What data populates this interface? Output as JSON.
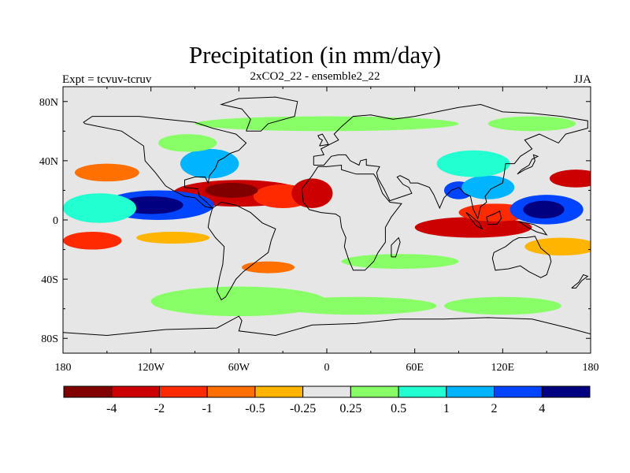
{
  "title": "Precipitation (in mm/day)",
  "subtitle": "2xCO2_22 - ensemble2_22",
  "left_label": "Expt = tcvuv-tcruv",
  "right_label": "JJA",
  "chart_data": {
    "type": "heatmap",
    "map_projection": "cylindrical-equidistant",
    "lon_range": [
      -180,
      180
    ],
    "lat_range": [
      -90,
      90
    ],
    "x_ticks": [
      "180",
      "120W",
      "60W",
      "0",
      "60E",
      "120E",
      "180"
    ],
    "y_ticks": [
      "80N",
      "40N",
      "0",
      "40S",
      "80S"
    ],
    "colorbar": {
      "colors": [
        "#800000",
        "#cc0000",
        "#ff2a00",
        "#ff7000",
        "#ffb400",
        "#e6e6e6",
        "#88ff66",
        "#22ffd0",
        "#00b4ff",
        "#0044ff",
        "#000080"
      ],
      "labels": [
        "-4",
        "-2",
        "-1",
        "-0.5",
        "-0.25",
        "0.25",
        "0.5",
        "1",
        "2",
        "4"
      ]
    },
    "background_color": "#e6e6e6",
    "anomaly_regions": [
      {
        "lon": -60,
        "lat": 18,
        "rx": 45,
        "ry": 9,
        "level": 1
      },
      {
        "lon": -30,
        "lat": 16,
        "rx": 20,
        "ry": 8,
        "level": 2
      },
      {
        "lon": -10,
        "lat": 18,
        "rx": 14,
        "ry": 10,
        "level": 1
      },
      {
        "lon": -65,
        "lat": 20,
        "rx": 18,
        "ry": 5,
        "level": 0
      },
      {
        "lon": -115,
        "lat": 10,
        "rx": 38,
        "ry": 10,
        "level": 9
      },
      {
        "lon": -120,
        "lat": 10,
        "rx": 22,
        "ry": 6,
        "level": 10
      },
      {
        "lon": -155,
        "lat": 8,
        "rx": 25,
        "ry": 10,
        "level": 7
      },
      {
        "lon": -150,
        "lat": 32,
        "rx": 22,
        "ry": 6,
        "level": 3
      },
      {
        "lon": -160,
        "lat": -14,
        "rx": 20,
        "ry": 6,
        "level": 2
      },
      {
        "lon": -105,
        "lat": -12,
        "rx": 25,
        "ry": 4,
        "level": 4
      },
      {
        "lon": -80,
        "lat": 38,
        "rx": 20,
        "ry": 10,
        "level": 8
      },
      {
        "lon": -95,
        "lat": 52,
        "rx": 20,
        "ry": 6,
        "level": 6
      },
      {
        "lon": 100,
        "lat": -5,
        "rx": 40,
        "ry": 7,
        "level": 1
      },
      {
        "lon": 115,
        "lat": 5,
        "rx": 25,
        "ry": 6,
        "level": 2
      },
      {
        "lon": 150,
        "lat": 7,
        "rx": 25,
        "ry": 10,
        "level": 9
      },
      {
        "lon": 148,
        "lat": 7,
        "rx": 14,
        "ry": 6,
        "level": 10
      },
      {
        "lon": 90,
        "lat": 20,
        "rx": 10,
        "ry": 6,
        "level": 9
      },
      {
        "lon": 110,
        "lat": 22,
        "rx": 18,
        "ry": 8,
        "level": 8
      },
      {
        "lon": 100,
        "lat": 38,
        "rx": 25,
        "ry": 9,
        "level": 7
      },
      {
        "lon": 170,
        "lat": 28,
        "rx": 18,
        "ry": 6,
        "level": 1
      },
      {
        "lon": 160,
        "lat": -18,
        "rx": 25,
        "ry": 6,
        "level": 4
      },
      {
        "lon": 50,
        "lat": -28,
        "rx": 40,
        "ry": 5,
        "level": 6
      },
      {
        "lon": -60,
        "lat": -55,
        "rx": 60,
        "ry": 10,
        "level": 6
      },
      {
        "lon": 20,
        "lat": -58,
        "rx": 55,
        "ry": 6,
        "level": 6
      },
      {
        "lon": 120,
        "lat": -58,
        "rx": 40,
        "ry": 6,
        "level": 6
      },
      {
        "lon": 0,
        "lat": 65,
        "rx": 90,
        "ry": 5,
        "level": 6
      },
      {
        "lon": 140,
        "lat": 65,
        "rx": 30,
        "ry": 5,
        "level": 6
      },
      {
        "lon": -40,
        "lat": -32,
        "rx": 18,
        "ry": 4,
        "level": 3
      }
    ]
  }
}
